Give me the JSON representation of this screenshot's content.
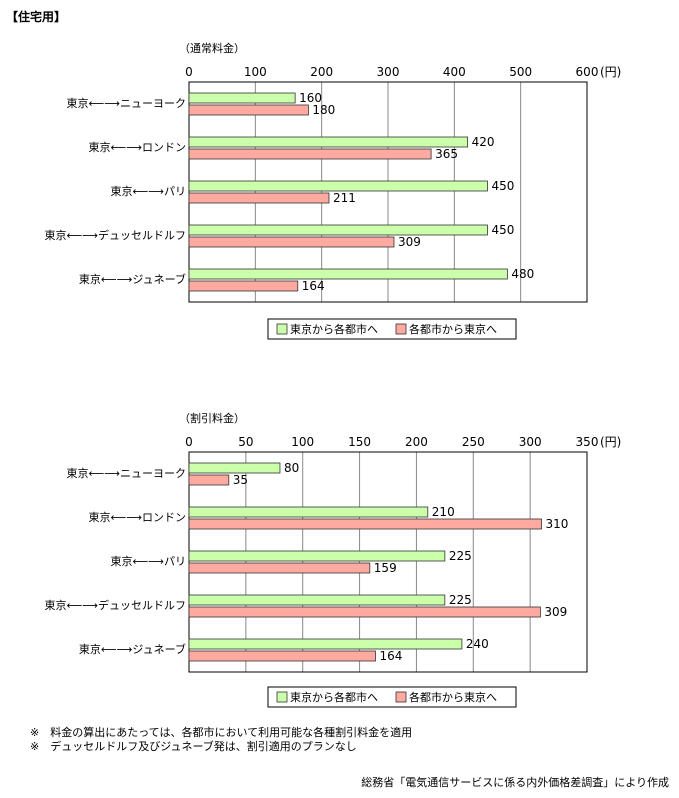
{
  "heading": "【住宅用】",
  "chart_data": [
    {
      "type": "bar",
      "title": "（通常料金）",
      "unit": "(円)",
      "xlim": [
        0,
        600
      ],
      "ticks": [
        0,
        100,
        200,
        300,
        400,
        500,
        600
      ],
      "categories": [
        "東京⟵⟶ニューヨーク",
        "東京⟵⟶ロンドン",
        "東京⟵⟶パリ",
        "東京⟵⟶デュッセルドルフ",
        "東京⟵⟶ジュネーブ"
      ],
      "series": [
        {
          "name": "東京から各都市へ",
          "color": "#ccffaa",
          "values": [
            160,
            420,
            450,
            450,
            480
          ]
        },
        {
          "name": "各都市から東京へ",
          "color": "#ffaaa0",
          "values": [
            180,
            365,
            211,
            309,
            164
          ]
        }
      ],
      "legend": "bottom",
      "grid": true
    },
    {
      "type": "bar",
      "title": "（割引料金）",
      "unit": "(円)",
      "xlim": [
        0,
        350
      ],
      "ticks": [
        0,
        50,
        100,
        150,
        200,
        250,
        300,
        350
      ],
      "categories": [
        "東京⟵⟶ニューヨーク",
        "東京⟵⟶ロンドン",
        "東京⟵⟶パリ",
        "東京⟵⟶デュッセルドルフ",
        "東京⟵⟶ジュネーブ"
      ],
      "series": [
        {
          "name": "東京から各都市へ",
          "color": "#ccffaa",
          "values": [
            80,
            210,
            225,
            225,
            240
          ]
        },
        {
          "name": "各都市から東京へ",
          "color": "#ffaaa0",
          "values": [
            35,
            310,
            159,
            309,
            164
          ]
        }
      ],
      "legend": "bottom",
      "grid": true
    }
  ],
  "notes": [
    "※　料金の算出にあたっては、各都市において利用可能な各種割引料金を適用",
    "※　デュッセルドルフ及びジュネーブ発は、割引適用のプランなし"
  ],
  "source": "総務省「電気通信サービスに係る内外価格差調査」により作成"
}
